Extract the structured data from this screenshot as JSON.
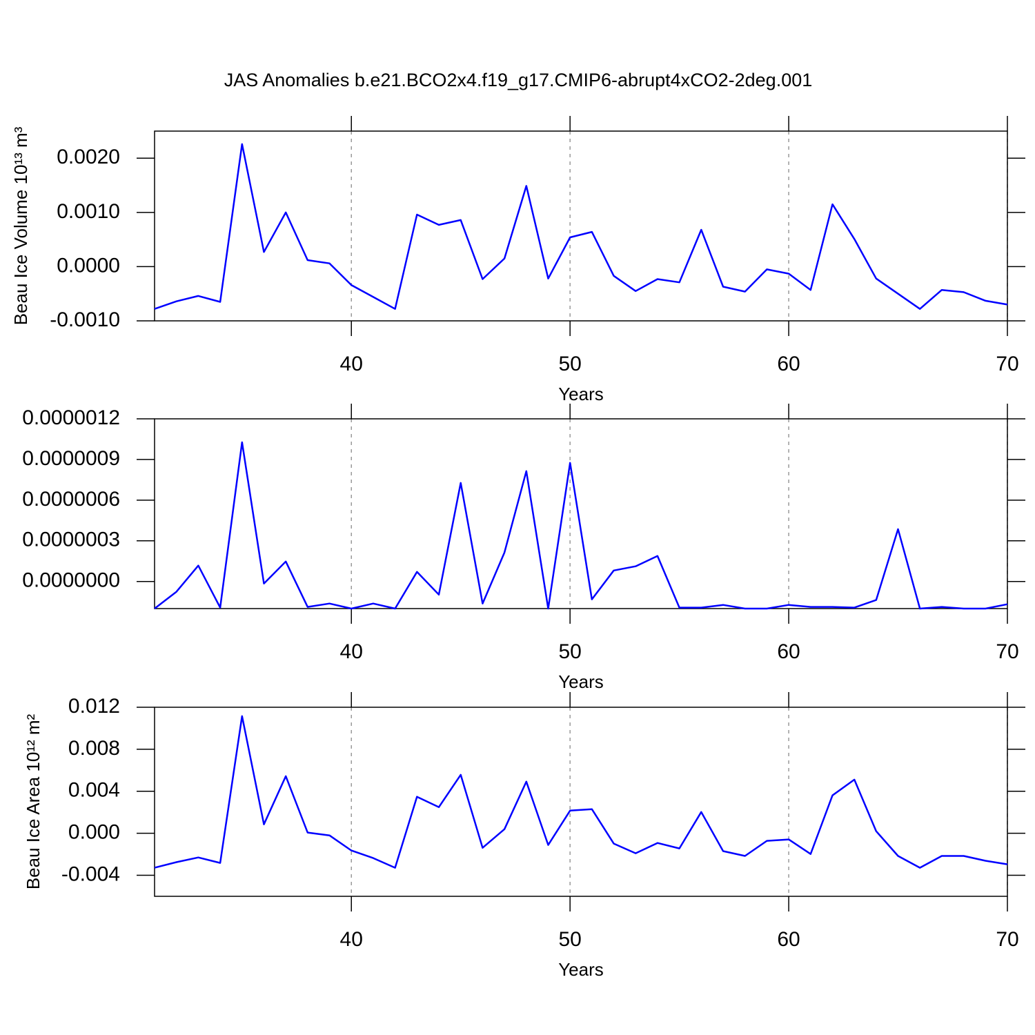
{
  "chart_data": [
    {
      "type": "line",
      "title": "JAS Anomalies b.e21.BCO2x4.f19_g17.CMIP6-abrupt4xCO2-2deg.001",
      "ylabel": "Beau Ice Volume 10¹³ m³",
      "xlabel": "Years",
      "x": [
        31,
        32,
        33,
        34,
        35,
        36,
        37,
        38,
        39,
        40,
        41,
        42,
        43,
        44,
        45,
        46,
        47,
        48,
        49,
        50,
        51,
        52,
        53,
        54,
        55,
        56,
        57,
        58,
        59,
        60,
        61,
        62,
        63,
        64,
        65,
        66,
        67,
        68,
        69,
        70
      ],
      "values": [
        -0.00078,
        -0.00064,
        -0.00054,
        -0.00065,
        0.00226,
        0.00027,
        0.001,
        0.00012,
        6e-05,
        -0.00034,
        -0.00056,
        -0.00078,
        0.00096,
        0.00077,
        0.00086,
        -0.00023,
        0.00015,
        0.00149,
        -0.00022,
        0.00054,
        0.00064,
        -0.00017,
        -0.00045,
        -0.00023,
        -0.00029,
        0.00068,
        -0.00037,
        -0.00046,
        -5e-05,
        -0.00013,
        -0.00043,
        0.00115,
        0.00051,
        -0.00022,
        -0.0005,
        -0.00078,
        -0.00043,
        -0.00047,
        -0.00063,
        -0.0007
      ],
      "color": "#0000ff",
      "xlim": [
        31,
        70
      ],
      "xticks": [
        40,
        50,
        60,
        70
      ],
      "ylim": [
        -0.001,
        0.0025
      ],
      "yticks": [
        {
          "value": -0.001,
          "label": "-0.0010"
        },
        {
          "value": 0,
          "label": "0.0000"
        },
        {
          "value": 0.001,
          "label": "0.0010"
        },
        {
          "value": 0.002,
          "label": "0.0020"
        }
      ],
      "grid": "x"
    },
    {
      "type": "line",
      "xlabel": "Years",
      "x": [
        31,
        32,
        33,
        34,
        35,
        36,
        37,
        38,
        39,
        40,
        41,
        42,
        43,
        44,
        45,
        46,
        47,
        48,
        49,
        50,
        51,
        52,
        53,
        54,
        55,
        56,
        57,
        58,
        59,
        60,
        61,
        62,
        63,
        64,
        65,
        66,
        67,
        68,
        69,
        70
      ],
      "values": [
        -2e-07,
        -7.6e-08,
        1.17e-07,
        -1.93e-07,
        1.027e-06,
        -1.5e-08,
        1.47e-07,
        -1.88e-07,
        -1.63e-07,
        -2e-07,
        -1.63e-07,
        -2e-07,
        7.1e-08,
        -9.7e-08,
        7.27e-07,
        -1.63e-07,
        2.14e-07,
        8.14e-07,
        -2e-07,
        8.75e-07,
        -1.32e-07,
        8.1e-08,
        1.12e-07,
        1.88e-07,
        -1.93e-07,
        -1.93e-07,
        -1.73e-07,
        -2e-07,
        -2e-07,
        -1.73e-07,
        -1.88e-07,
        -1.88e-07,
        -1.93e-07,
        -1.37e-07,
        3.86e-07,
        -2e-07,
        -1.88e-07,
        -2e-07,
        -2e-07,
        -1.68e-07
      ],
      "color": "#0000ff",
      "xlim": [
        31,
        70
      ],
      "xticks": [
        40,
        50,
        60,
        70
      ],
      "ylim": [
        -2e-07,
        1.2e-06
      ],
      "yticks": [
        {
          "value": 0,
          "label": "0.0000000"
        },
        {
          "value": 3e-07,
          "label": "0.0000003"
        },
        {
          "value": 6e-07,
          "label": "0.0000006"
        },
        {
          "value": 9e-07,
          "label": "0.0000009"
        },
        {
          "value": 1.2e-06,
          "label": "0.0000012"
        }
      ],
      "grid": "x"
    },
    {
      "type": "line",
      "ylabel": "Beau Ice Area 10¹² m²",
      "xlabel": "Years",
      "x": [
        31,
        32,
        33,
        34,
        35,
        36,
        37,
        38,
        39,
        40,
        41,
        42,
        43,
        44,
        45,
        46,
        47,
        48,
        49,
        50,
        51,
        52,
        53,
        54,
        55,
        56,
        57,
        58,
        59,
        60,
        61,
        62,
        63,
        64,
        65,
        66,
        67,
        68,
        69,
        70
      ],
      "values": [
        -0.00328,
        -0.00275,
        -0.0023,
        -0.00282,
        0.01115,
        0.00085,
        0.00544,
        7e-05,
        -0.0002,
        -0.00164,
        -0.00236,
        -0.00328,
        0.00348,
        0.00249,
        0.00557,
        -0.00138,
        0.00039,
        0.00492,
        -0.00111,
        0.00216,
        0.0023,
        -0.00098,
        -0.0019,
        -0.00092,
        -0.00144,
        0.00203,
        -0.0017,
        -0.00216,
        -0.00072,
        -0.00059,
        -0.00197,
        0.00361,
        0.00511,
        0.0002,
        -0.00216,
        -0.00328,
        -0.00216,
        -0.00216,
        -0.00262,
        -0.00295
      ],
      "color": "#0000ff",
      "xlim": [
        31,
        70
      ],
      "xticks": [
        40,
        50,
        60,
        70
      ],
      "ylim": [
        -0.006,
        0.012
      ],
      "yticks": [
        {
          "value": -0.004,
          "label": "-0.004"
        },
        {
          "value": 0,
          "label": "0.000"
        },
        {
          "value": 0.004,
          "label": "0.004"
        },
        {
          "value": 0.008,
          "label": "0.008"
        },
        {
          "value": 0.012,
          "label": "0.012"
        }
      ],
      "grid": "x"
    }
  ]
}
